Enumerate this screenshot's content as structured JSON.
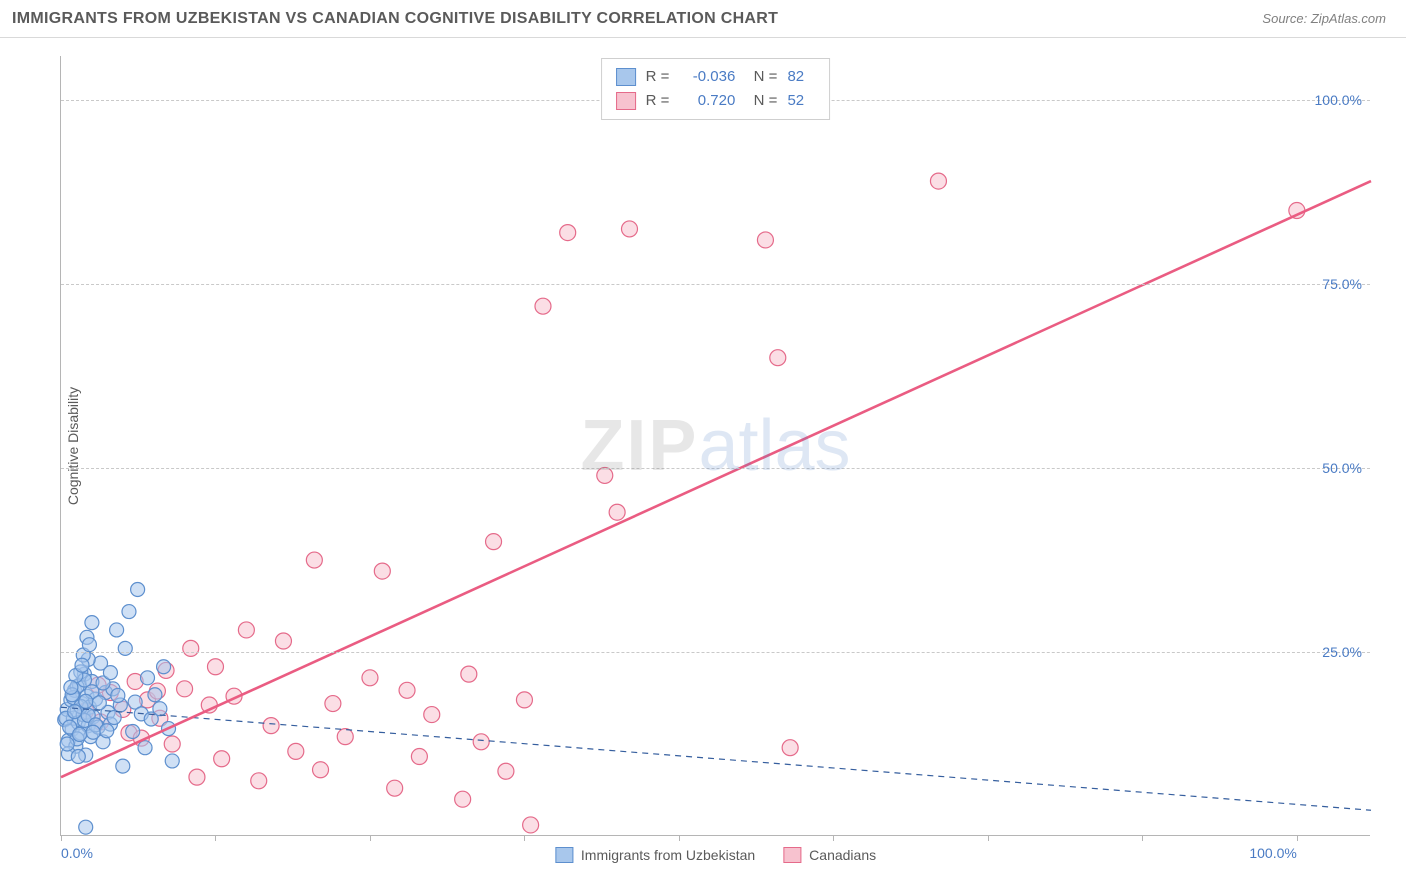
{
  "header": {
    "title": "IMMIGRANTS FROM UZBEKISTAN VS CANADIAN COGNITIVE DISABILITY CORRELATION CHART",
    "source_prefix": "Source:",
    "source_name": "ZipAtlas.com"
  },
  "chart": {
    "type": "scatter",
    "ylabel": "Cognitive Disability",
    "xlim": [
      0,
      106
    ],
    "ylim": [
      0,
      106
    ],
    "x_ticks": [
      0,
      12.5,
      25,
      37.5,
      50,
      62.5,
      75,
      87.5,
      100
    ],
    "x_tick_labels": {
      "0": "0.0%",
      "100": "100.0%"
    },
    "y_gridlines": [
      25,
      50,
      75,
      100
    ],
    "y_tick_labels": {
      "25": "25.0%",
      "50": "50.0%",
      "75": "75.0%",
      "100": "100.0%"
    },
    "background_color": "#ffffff",
    "grid_color": "#c9c9c9",
    "axis_color": "#b5b5b5",
    "watermark": {
      "part1": "ZIP",
      "part2": "atlas"
    },
    "series": [
      {
        "id": "uzbekistan",
        "label": "Immigrants from Uzbekistan",
        "fill_color": "#a8c7ec",
        "stroke_color": "#5d8fce",
        "marker_radius": 7,
        "fill_opacity": 0.55,
        "trend": {
          "type": "dashed",
          "color": "#355e9e",
          "width": 1.2,
          "x1": 0,
          "y1": 17.5,
          "x2": 106,
          "y2": 3.5
        },
        "R": "-0.036",
        "N": "82",
        "points": [
          [
            0.3,
            15.8
          ],
          [
            0.5,
            17.2
          ],
          [
            0.6,
            13.0
          ],
          [
            0.8,
            18.5
          ],
          [
            0.9,
            14.5
          ],
          [
            1.0,
            16.0
          ],
          [
            1.1,
            19.8
          ],
          [
            1.2,
            12.2
          ],
          [
            1.3,
            17.0
          ],
          [
            1.4,
            15.4
          ],
          [
            1.5,
            20.5
          ],
          [
            1.6,
            14.0
          ],
          [
            1.7,
            18.0
          ],
          [
            1.8,
            16.5
          ],
          [
            1.9,
            22.0
          ],
          [
            2.0,
            11.0
          ],
          [
            2.1,
            19.0
          ],
          [
            2.2,
            15.0
          ],
          [
            2.3,
            17.5
          ],
          [
            2.4,
            13.5
          ],
          [
            2.5,
            21.0
          ],
          [
            2.6,
            16.2
          ],
          [
            2.8,
            18.6
          ],
          [
            3.0,
            14.8
          ],
          [
            3.2,
            23.5
          ],
          [
            3.4,
            12.8
          ],
          [
            3.6,
            19.5
          ],
          [
            3.8,
            16.8
          ],
          [
            4.0,
            15.2
          ],
          [
            4.2,
            20.0
          ],
          [
            4.5,
            28.0
          ],
          [
            4.8,
            17.8
          ],
          [
            5.0,
            9.5
          ],
          [
            5.2,
            25.5
          ],
          [
            5.5,
            30.5
          ],
          [
            5.8,
            14.2
          ],
          [
            6.0,
            18.2
          ],
          [
            6.2,
            33.5
          ],
          [
            6.5,
            16.6
          ],
          [
            6.8,
            12.0
          ],
          [
            7.0,
            21.5
          ],
          [
            7.3,
            15.9
          ],
          [
            7.6,
            19.2
          ],
          [
            8.0,
            17.3
          ],
          [
            8.3,
            23.0
          ],
          [
            8.7,
            14.6
          ],
          [
            9.0,
            10.2
          ],
          [
            1.3,
            20.3
          ],
          [
            1.6,
            22.3
          ],
          [
            1.9,
            15.7
          ],
          [
            2.2,
            24.0
          ],
          [
            2.5,
            29.0
          ],
          [
            2.0,
            1.2
          ],
          [
            0.4,
            16.0
          ],
          [
            0.7,
            14.8
          ],
          [
            1.0,
            18.8
          ],
          [
            1.3,
            13.2
          ],
          [
            1.6,
            17.6
          ],
          [
            1.9,
            21.2
          ],
          [
            2.2,
            16.4
          ],
          [
            2.5,
            19.6
          ],
          [
            2.8,
            15.1
          ],
          [
            3.1,
            18.1
          ],
          [
            3.4,
            20.8
          ],
          [
            3.7,
            14.3
          ],
          [
            4.0,
            22.2
          ],
          [
            4.3,
            16.1
          ],
          [
            4.6,
            19.1
          ],
          [
            0.6,
            11.2
          ],
          [
            0.9,
            19.2
          ],
          [
            1.2,
            21.8
          ],
          [
            1.5,
            13.8
          ],
          [
            1.8,
            24.6
          ],
          [
            2.1,
            27.0
          ],
          [
            0.5,
            12.5
          ],
          [
            0.8,
            20.2
          ],
          [
            1.1,
            16.9
          ],
          [
            1.4,
            10.8
          ],
          [
            1.7,
            23.2
          ],
          [
            2.0,
            18.3
          ],
          [
            2.3,
            26.0
          ],
          [
            2.6,
            14.1
          ]
        ]
      },
      {
        "id": "canadians",
        "label": "Canadians",
        "fill_color": "#f7c2cf",
        "stroke_color": "#e56a8a",
        "marker_radius": 8,
        "fill_opacity": 0.55,
        "trend": {
          "type": "solid",
          "color": "#ea5c82",
          "width": 2.6,
          "x1": 0,
          "y1": 8,
          "x2": 106,
          "y2": 89
        },
        "R": "0.720",
        "N": "52",
        "points": [
          [
            2.0,
            17.0
          ],
          [
            3.2,
            15.5
          ],
          [
            4.0,
            19.5
          ],
          [
            5.5,
            14.0
          ],
          [
            6.0,
            21.0
          ],
          [
            7.0,
            18.5
          ],
          [
            8.0,
            16.0
          ],
          [
            8.5,
            22.5
          ],
          [
            9.0,
            12.5
          ],
          [
            10.0,
            20.0
          ],
          [
            10.5,
            25.5
          ],
          [
            11.0,
            8.0
          ],
          [
            12.0,
            17.8
          ],
          [
            12.5,
            23.0
          ],
          [
            13.0,
            10.5
          ],
          [
            14.0,
            19.0
          ],
          [
            15.0,
            28.0
          ],
          [
            16.0,
            7.5
          ],
          [
            17.0,
            15.0
          ],
          [
            18.0,
            26.5
          ],
          [
            19.0,
            11.5
          ],
          [
            20.5,
            37.5
          ],
          [
            21.0,
            9.0
          ],
          [
            22.0,
            18.0
          ],
          [
            23.0,
            13.5
          ],
          [
            25.0,
            21.5
          ],
          [
            26.0,
            36.0
          ],
          [
            27.0,
            6.5
          ],
          [
            28.0,
            19.8
          ],
          [
            29.0,
            10.8
          ],
          [
            30.0,
            16.5
          ],
          [
            32.5,
            5.0
          ],
          [
            33.0,
            22.0
          ],
          [
            34.0,
            12.8
          ],
          [
            35.0,
            40.0
          ],
          [
            36.0,
            8.8
          ],
          [
            37.5,
            18.5
          ],
          [
            38.0,
            1.5
          ],
          [
            39.0,
            72.0
          ],
          [
            41.0,
            82.0
          ],
          [
            44.0,
            49.0
          ],
          [
            45.0,
            44.0
          ],
          [
            46.0,
            82.5
          ],
          [
            57.0,
            81.0
          ],
          [
            58.0,
            65.0
          ],
          [
            59.0,
            12.0
          ],
          [
            71.0,
            89.0
          ],
          [
            100.0,
            85.0
          ],
          [
            3.0,
            20.5
          ],
          [
            5.0,
            17.2
          ],
          [
            6.5,
            13.3
          ],
          [
            7.8,
            19.7
          ]
        ]
      }
    ],
    "bottom_legend": [
      {
        "series": 0
      },
      {
        "series": 1
      }
    ]
  }
}
